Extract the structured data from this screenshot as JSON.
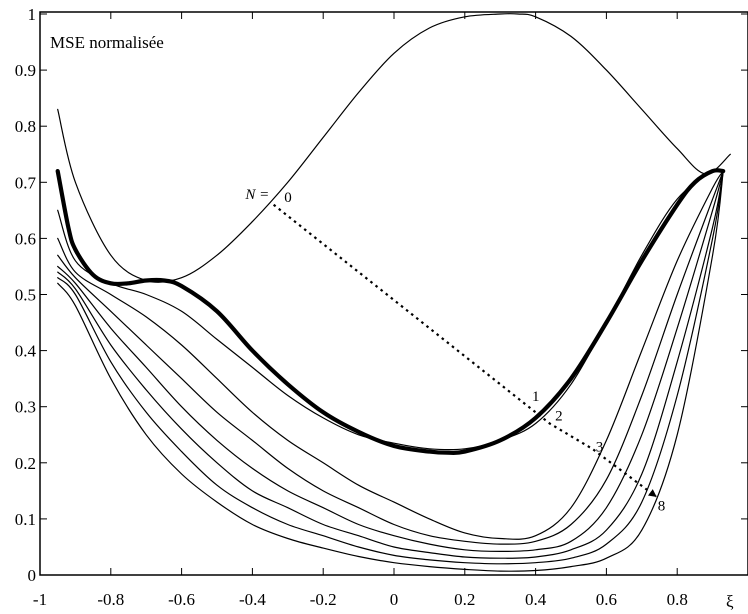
{
  "chart_data": {
    "type": "line",
    "title": "MSE normalisée",
    "xlabel": "ξ",
    "ylabel": "",
    "xlim": [
      -1,
      1
    ],
    "ylim": [
      0,
      1
    ],
    "xticks": [
      "-1",
      "-0.8",
      "-0.6",
      "-0.4",
      "-0.2",
      "0",
      "0.2",
      "0.4",
      "0.6",
      "0.8"
    ],
    "yticks": [
      "0",
      "0.1",
      "0.2",
      "0.3",
      "0.4",
      "0.5",
      "0.6",
      "0.7",
      "0.8",
      "0.9",
      "1"
    ],
    "grid": false,
    "annotations": {
      "n_prefix": "N =",
      "labels": [
        "0",
        "1",
        "2",
        "3",
        "8"
      ]
    },
    "series": [
      {
        "key": "0",
        "weight": "normal",
        "x": [
          -0.95,
          -0.9,
          -0.8,
          -0.7,
          -0.6,
          -0.5,
          -0.4,
          -0.3,
          -0.2,
          -0.1,
          0,
          0.1,
          0.2,
          0.3,
          0.35,
          0.4,
          0.5,
          0.6,
          0.7,
          0.8,
          0.88,
          0.95
        ],
        "y": [
          0.83,
          0.7,
          0.57,
          0.525,
          0.53,
          0.57,
          0.63,
          0.7,
          0.78,
          0.86,
          0.93,
          0.975,
          0.995,
          1.0,
          1.0,
          0.995,
          0.96,
          0.9,
          0.83,
          0.76,
          0.715,
          0.75
        ]
      },
      {
        "key": "1",
        "weight": "bold",
        "x": [
          -0.95,
          -0.92,
          -0.9,
          -0.85,
          -0.8,
          -0.75,
          -0.7,
          -0.65,
          -0.6,
          -0.5,
          -0.4,
          -0.3,
          -0.2,
          -0.1,
          0,
          0.1,
          0.15,
          0.2,
          0.3,
          0.4,
          0.5,
          0.6,
          0.7,
          0.8,
          0.85,
          0.9,
          0.93
        ],
        "y": [
          0.72,
          0.62,
          0.58,
          0.535,
          0.52,
          0.52,
          0.525,
          0.525,
          0.515,
          0.47,
          0.4,
          0.34,
          0.29,
          0.255,
          0.23,
          0.22,
          0.218,
          0.22,
          0.24,
          0.28,
          0.35,
          0.45,
          0.56,
          0.66,
          0.7,
          0.72,
          0.72
        ]
      },
      {
        "key": "2",
        "weight": "normal",
        "x": [
          -0.95,
          -0.9,
          -0.8,
          -0.7,
          -0.6,
          -0.5,
          -0.4,
          -0.3,
          -0.2,
          -0.1,
          0,
          0.1,
          0.2,
          0.3,
          0.4,
          0.5,
          0.6,
          0.7,
          0.8,
          0.9,
          0.93
        ],
        "y": [
          0.65,
          0.56,
          0.52,
          0.5,
          0.47,
          0.42,
          0.37,
          0.32,
          0.28,
          0.25,
          0.235,
          0.225,
          0.225,
          0.24,
          0.27,
          0.34,
          0.45,
          0.57,
          0.67,
          0.72,
          0.72
        ]
      },
      {
        "key": "3",
        "weight": "normal",
        "x": [
          -0.95,
          -0.9,
          -0.8,
          -0.7,
          -0.6,
          -0.5,
          -0.4,
          -0.3,
          -0.2,
          -0.1,
          0,
          0.1,
          0.2,
          0.3,
          0.4,
          0.5,
          0.6,
          0.7,
          0.8,
          0.9,
          0.93
        ],
        "y": [
          0.6,
          0.54,
          0.5,
          0.46,
          0.41,
          0.35,
          0.29,
          0.24,
          0.2,
          0.16,
          0.13,
          0.1,
          0.075,
          0.065,
          0.07,
          0.12,
          0.24,
          0.4,
          0.56,
          0.69,
          0.72
        ]
      },
      {
        "key": "4",
        "weight": "normal",
        "x": [
          -0.95,
          -0.9,
          -0.8,
          -0.7,
          -0.6,
          -0.5,
          -0.4,
          -0.3,
          -0.2,
          -0.1,
          0,
          0.1,
          0.2,
          0.3,
          0.4,
          0.5,
          0.6,
          0.7,
          0.8,
          0.9,
          0.93
        ],
        "y": [
          0.57,
          0.53,
          0.47,
          0.41,
          0.35,
          0.29,
          0.24,
          0.19,
          0.15,
          0.12,
          0.09,
          0.07,
          0.06,
          0.055,
          0.06,
          0.09,
          0.17,
          0.32,
          0.5,
          0.67,
          0.72
        ]
      },
      {
        "key": "5",
        "weight": "normal",
        "x": [
          -0.95,
          -0.9,
          -0.8,
          -0.7,
          -0.6,
          -0.5,
          -0.4,
          -0.3,
          -0.2,
          -0.1,
          0,
          0.1,
          0.2,
          0.3,
          0.4,
          0.5,
          0.6,
          0.7,
          0.8,
          0.9,
          0.93
        ],
        "y": [
          0.55,
          0.52,
          0.44,
          0.37,
          0.3,
          0.24,
          0.19,
          0.15,
          0.12,
          0.09,
          0.07,
          0.055,
          0.045,
          0.042,
          0.045,
          0.06,
          0.12,
          0.25,
          0.44,
          0.65,
          0.72
        ]
      },
      {
        "key": "6",
        "weight": "normal",
        "x": [
          -0.95,
          -0.9,
          -0.8,
          -0.7,
          -0.6,
          -0.5,
          -0.4,
          -0.3,
          -0.2,
          -0.1,
          0,
          0.1,
          0.2,
          0.3,
          0.4,
          0.5,
          0.6,
          0.7,
          0.8,
          0.9,
          0.93
        ],
        "y": [
          0.54,
          0.51,
          0.41,
          0.33,
          0.26,
          0.2,
          0.15,
          0.12,
          0.09,
          0.07,
          0.05,
          0.04,
          0.032,
          0.03,
          0.032,
          0.045,
          0.08,
          0.18,
          0.38,
          0.62,
          0.72
        ]
      },
      {
        "key": "7",
        "weight": "normal",
        "x": [
          -0.95,
          -0.9,
          -0.8,
          -0.7,
          -0.6,
          -0.5,
          -0.4,
          -0.3,
          -0.2,
          -0.1,
          0,
          0.1,
          0.2,
          0.3,
          0.4,
          0.5,
          0.6,
          0.7,
          0.8,
          0.9,
          0.93
        ],
        "y": [
          0.53,
          0.5,
          0.38,
          0.29,
          0.22,
          0.16,
          0.12,
          0.09,
          0.07,
          0.05,
          0.035,
          0.027,
          0.022,
          0.02,
          0.022,
          0.03,
          0.055,
          0.13,
          0.32,
          0.6,
          0.72
        ]
      },
      {
        "key": "8",
        "weight": "normal",
        "x": [
          -0.95,
          -0.9,
          -0.8,
          -0.7,
          -0.6,
          -0.5,
          -0.4,
          -0.3,
          -0.2,
          -0.1,
          0,
          0.1,
          0.2,
          0.3,
          0.4,
          0.5,
          0.6,
          0.7,
          0.8,
          0.9,
          0.93
        ],
        "y": [
          0.52,
          0.48,
          0.35,
          0.25,
          0.18,
          0.13,
          0.09,
          0.065,
          0.048,
          0.033,
          0.022,
          0.015,
          0.01,
          0.007,
          0.008,
          0.015,
          0.03,
          0.08,
          0.25,
          0.57,
          0.72
        ]
      }
    ],
    "trend_line": {
      "style": "dotted",
      "x": [
        -0.34,
        0.38,
        0.44,
        0.56,
        0.74
      ],
      "y": [
        0.66,
        0.3,
        0.27,
        0.225,
        0.14
      ]
    },
    "label_positions": [
      {
        "text": "0",
        "x": -0.31,
        "y": 0.665
      },
      {
        "text": "1",
        "x": 0.39,
        "y": 0.31
      },
      {
        "text": "2",
        "x": 0.455,
        "y": 0.275
      },
      {
        "text": "3",
        "x": 0.57,
        "y": 0.22
      },
      {
        "text": "8",
        "x": 0.745,
        "y": 0.115
      }
    ],
    "n_prefix_position": {
      "x": -0.42,
      "y": 0.67
    }
  }
}
